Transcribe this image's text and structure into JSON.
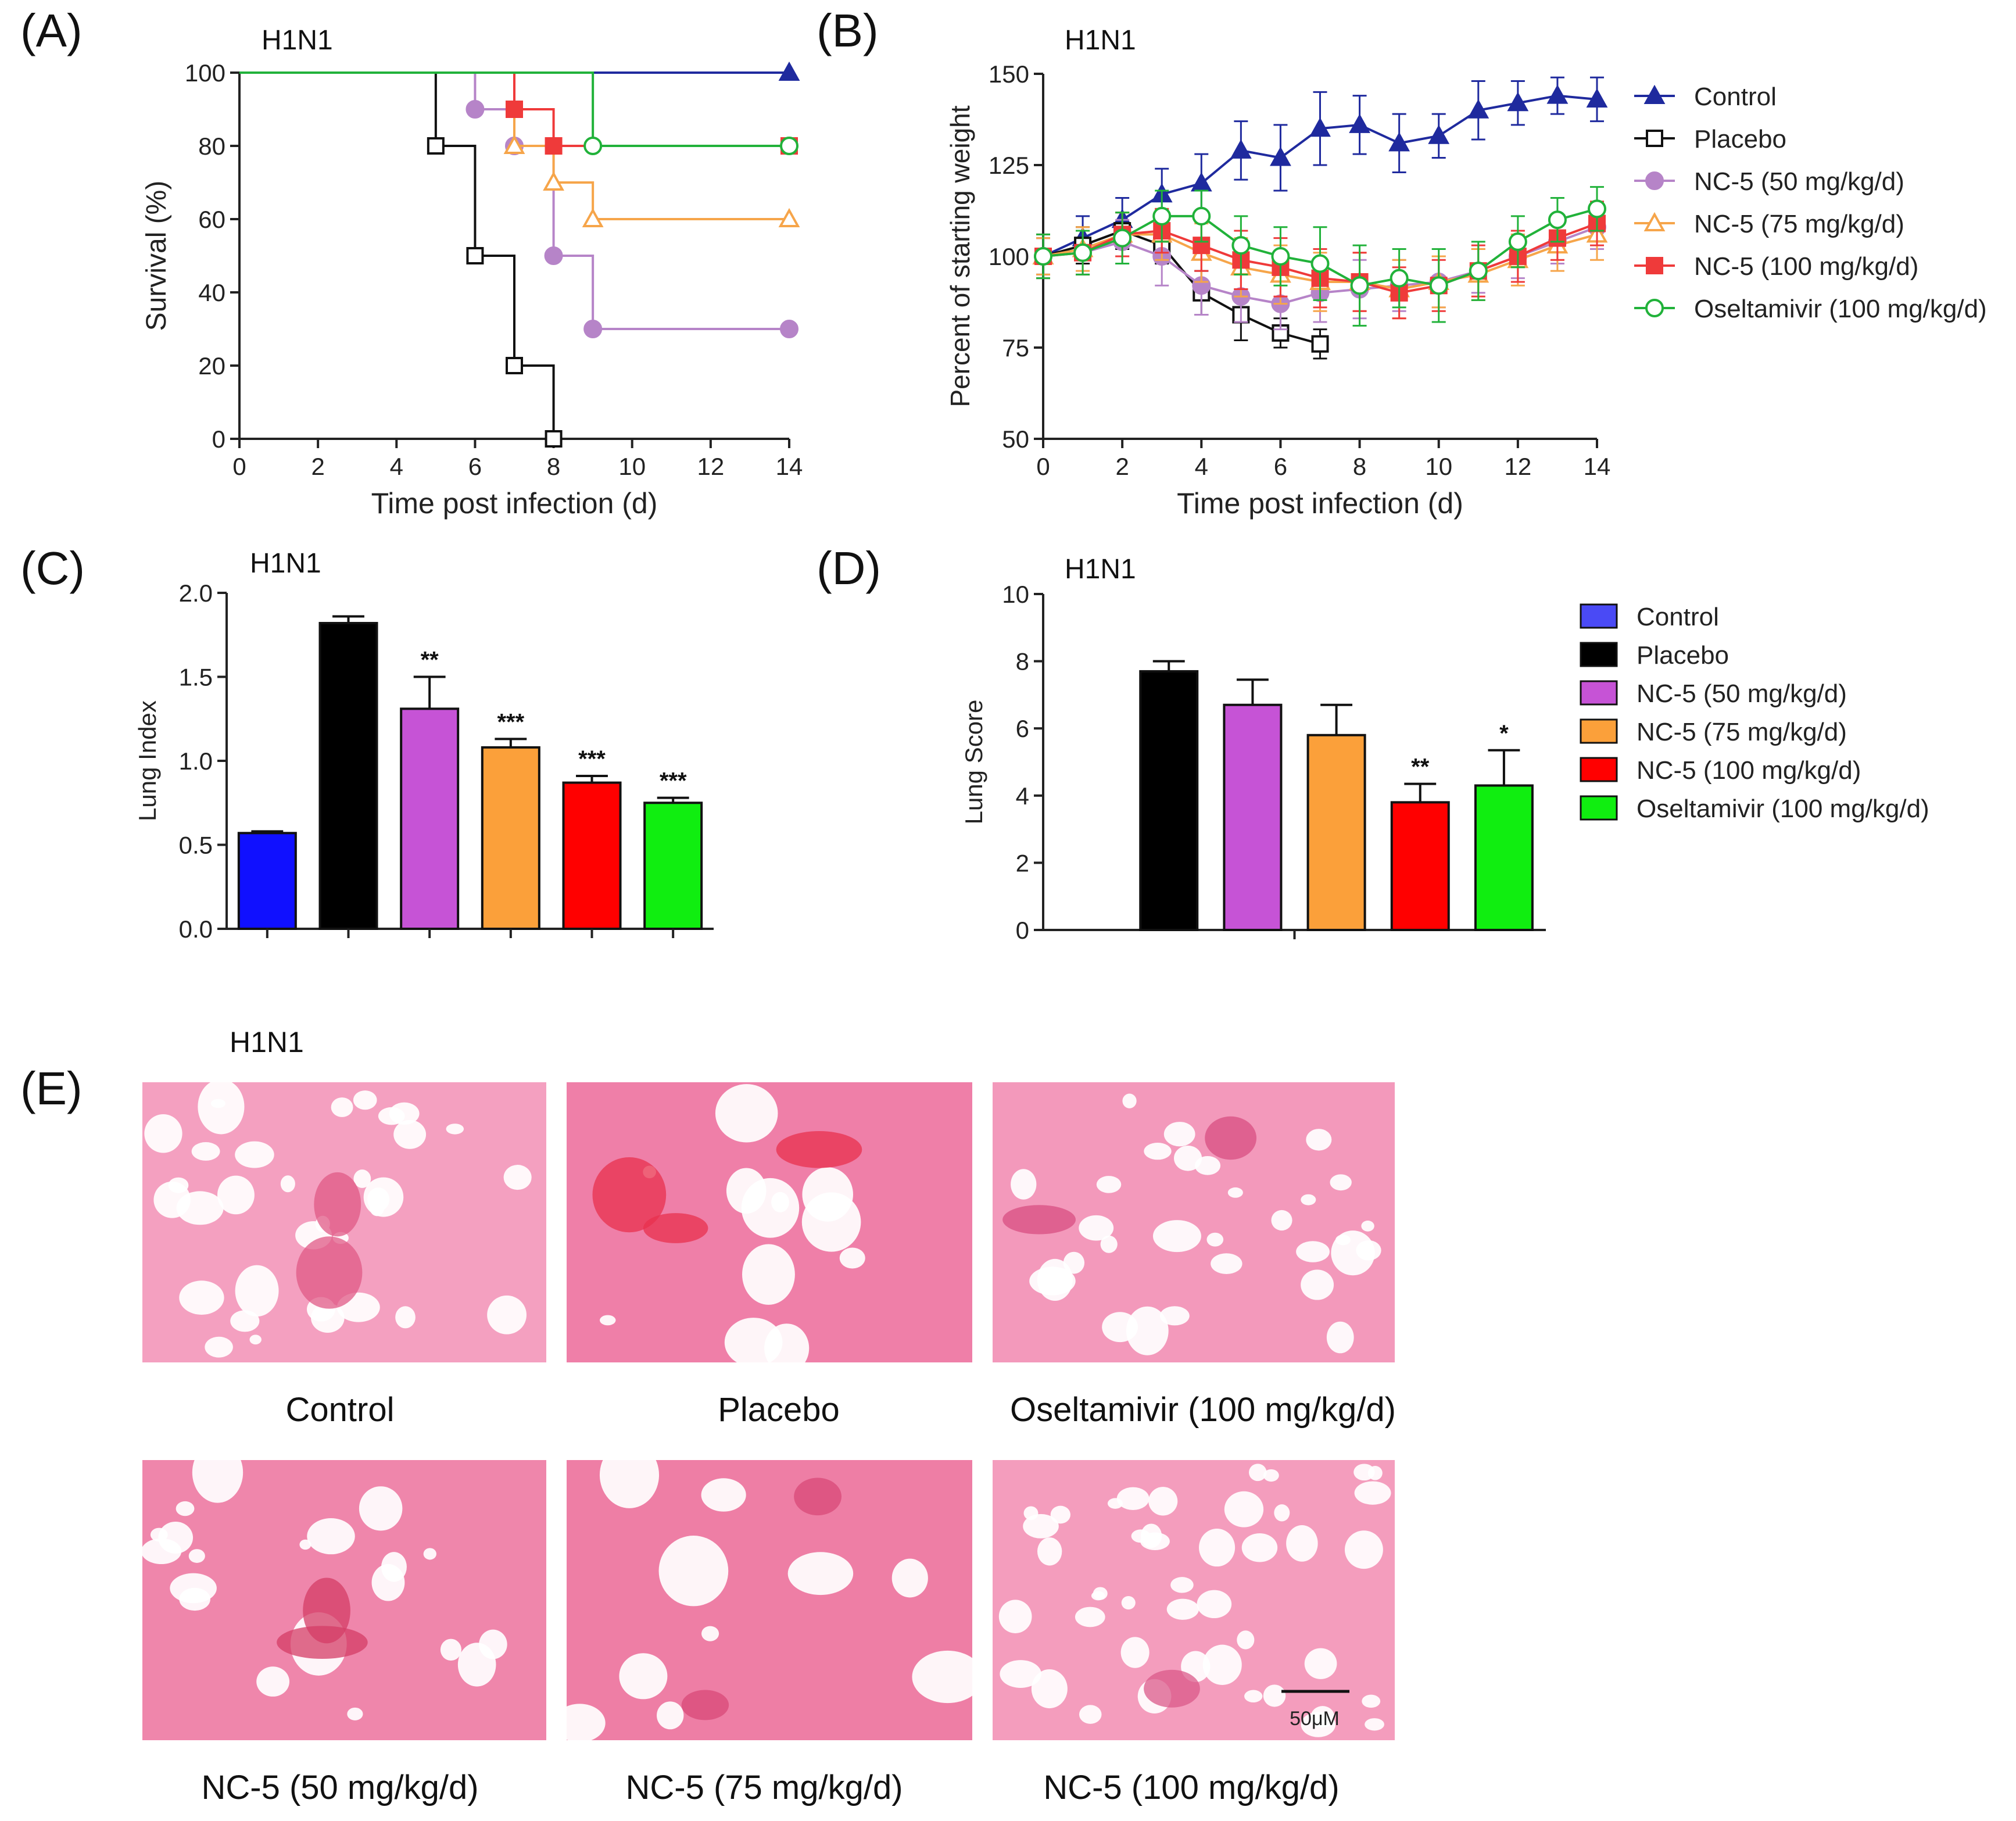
{
  "figure": {
    "caption_e": "(E)",
    "virus_label_e": "H1N1",
    "histology_panels": [
      {
        "label": "Control",
        "tone": "#f4a0c0",
        "void": "#ffffff",
        "lesion": "#e05a86"
      },
      {
        "label": "Placebo",
        "tone": "#ef7fa8",
        "void": "#ffffff",
        "lesion": "#e8304e"
      },
      {
        "label": "Oseltamivir (100 mg/kg/d)",
        "tone": "#f399bb",
        "void": "#ffffff",
        "lesion": "#d84f82"
      },
      {
        "label": "NC-5 (50 mg/kg/d)",
        "tone": "#ef86ab",
        "void": "#ffffff",
        "lesion": "#d43c66"
      },
      {
        "label": "NC-5 (75 mg/kg/d)",
        "tone": "#ee7ea5",
        "void": "#ffffff",
        "lesion": "#d84a78"
      },
      {
        "label": "NC-5 (100 mg/kg/d)",
        "tone": "#f49dbd",
        "void": "#ffffff",
        "lesion": "#db5a8a"
      }
    ],
    "scale_bar_label": "50μM"
  },
  "chart_data": [
    {
      "id": "A",
      "type": "line",
      "panel_label": "(A)",
      "title": "H1N1",
      "xlabel": "Time post infection (d)",
      "ylabel": "Survival (%)",
      "xlim": [
        0,
        14
      ],
      "ylim": [
        0,
        100
      ],
      "xticks": [
        0,
        2,
        4,
        6,
        8,
        10,
        12,
        14
      ],
      "yticks": [
        0,
        20,
        40,
        60,
        80,
        100
      ],
      "step": true,
      "series": [
        {
          "name": "Control",
          "color": "#1f2a9e",
          "marker": "triangle-filled",
          "points": [
            [
              0,
              100
            ],
            [
              14,
              100
            ]
          ],
          "markers": [
            [
              14,
              100
            ]
          ]
        },
        {
          "name": "Placebo",
          "color": "#111111",
          "marker": "square-open",
          "points": [
            [
              0,
              100
            ],
            [
              5,
              80
            ],
            [
              6,
              50
            ],
            [
              7,
              20
            ],
            [
              8,
              0
            ]
          ],
          "markers": [
            [
              5,
              80
            ],
            [
              6,
              50
            ],
            [
              7,
              20
            ],
            [
              8,
              0
            ]
          ]
        },
        {
          "name": "NC-5 (50 mg/kg/d)",
          "color": "#b684c8",
          "marker": "circle-filled",
          "points": [
            [
              0,
              100
            ],
            [
              6,
              90
            ],
            [
              7,
              80
            ],
            [
              8,
              50
            ],
            [
              9,
              30
            ],
            [
              14,
              30
            ]
          ],
          "markers": [
            [
              6,
              90
            ],
            [
              7,
              80
            ],
            [
              8,
              50
            ],
            [
              9,
              30
            ],
            [
              14,
              30
            ]
          ]
        },
        {
          "name": "NC-5 (75 mg/kg/d)",
          "color": "#f6a54a",
          "marker": "triangle-open",
          "points": [
            [
              0,
              100
            ],
            [
              7,
              80
            ],
            [
              8,
              70
            ],
            [
              9,
              60
            ],
            [
              14,
              60
            ]
          ],
          "markers": [
            [
              7,
              80
            ],
            [
              8,
              70
            ],
            [
              9,
              60
            ],
            [
              14,
              60
            ]
          ]
        },
        {
          "name": "NC-5 (100 mg/kg/d)",
          "color": "#ef3a3a",
          "marker": "square-filled",
          "points": [
            [
              0,
              100
            ],
            [
              7,
              90
            ],
            [
              8,
              80
            ],
            [
              14,
              80
            ]
          ],
          "markers": [
            [
              7,
              90
            ],
            [
              8,
              80
            ],
            [
              14,
              80
            ]
          ]
        },
        {
          "name": "Oseltamivir (100 mg/kg/d)",
          "color": "#21b23a",
          "marker": "circle-open",
          "points": [
            [
              0,
              100
            ],
            [
              9,
              80
            ],
            [
              14,
              80
            ]
          ],
          "markers": [
            [
              9,
              80
            ],
            [
              14,
              80
            ]
          ]
        }
      ]
    },
    {
      "id": "B",
      "type": "line",
      "panel_label": "(B)",
      "title": "H1N1",
      "xlabel": "Time post infection (d)",
      "ylabel": "Percent of starting weight",
      "xlim": [
        0,
        14
      ],
      "ylim": [
        50,
        150
      ],
      "xticks": [
        0,
        2,
        4,
        6,
        8,
        10,
        12,
        14
      ],
      "yticks": [
        50,
        75,
        100,
        125,
        150
      ],
      "legend_position": "right",
      "series": [
        {
          "name": "Control",
          "color": "#1f2a9e",
          "marker": "triangle-filled",
          "x": [
            0,
            1,
            2,
            3,
            4,
            5,
            6,
            7,
            8,
            9,
            10,
            11,
            12,
            13,
            14
          ],
          "y": [
            100,
            105,
            110,
            117,
            120,
            129,
            127,
            135,
            136,
            131,
            133,
            140,
            142,
            144,
            143
          ],
          "err": [
            6,
            6,
            6,
            7,
            8,
            8,
            9,
            10,
            8,
            8,
            6,
            8,
            6,
            5,
            6
          ]
        },
        {
          "name": "Placebo",
          "color": "#111111",
          "marker": "square-open",
          "x": [
            0,
            1,
            2,
            3,
            4,
            5,
            6,
            7
          ],
          "y": [
            100,
            103,
            107,
            103,
            90,
            84,
            79,
            76
          ],
          "err": [
            5,
            5,
            5,
            5,
            6,
            7,
            4,
            4
          ]
        },
        {
          "name": "NC-5 (50 mg/kg/d)",
          "color": "#b684c8",
          "marker": "circle-filled",
          "x": [
            0,
            1,
            2,
            3,
            4,
            5,
            6,
            7,
            8,
            9,
            10,
            11,
            12,
            13,
            14
          ],
          "y": [
            100,
            101,
            104,
            100,
            92,
            89,
            87,
            90,
            91,
            92,
            93,
            96,
            100,
            104,
            108
          ],
          "err": [
            5,
            6,
            6,
            8,
            8,
            7,
            7,
            8,
            8,
            7,
            7,
            6,
            6,
            6,
            6
          ]
        },
        {
          "name": "NC-5 (75 mg/kg/d)",
          "color": "#f6a54a",
          "marker": "triangle-open",
          "x": [
            0,
            1,
            2,
            3,
            4,
            5,
            6,
            7,
            8,
            9,
            10,
            11,
            12,
            13,
            14
          ],
          "y": [
            100,
            102,
            106,
            106,
            101,
            97,
            95,
            93,
            93,
            91,
            93,
            95,
            99,
            103,
            106
          ],
          "err": [
            5,
            6,
            6,
            7,
            8,
            8,
            8,
            8,
            8,
            8,
            7,
            7,
            7,
            7,
            7
          ]
        },
        {
          "name": "NC-5 (100 mg/kg/d)",
          "color": "#ef3a3a",
          "marker": "square-filled",
          "x": [
            0,
            1,
            2,
            3,
            4,
            5,
            6,
            7,
            8,
            9,
            10,
            11,
            12,
            13,
            14
          ],
          "y": [
            100,
            101,
            106,
            107,
            103,
            99,
            97,
            94,
            93,
            90,
            92,
            96,
            100,
            105,
            109
          ],
          "err": [
            6,
            6,
            6,
            6,
            7,
            8,
            8,
            8,
            8,
            7,
            7,
            7,
            7,
            6,
            6
          ]
        },
        {
          "name": "Oseltamivir (100 mg/kg/d)",
          "color": "#21b23a",
          "marker": "circle-open",
          "x": [
            0,
            1,
            2,
            3,
            4,
            5,
            6,
            7,
            8,
            9,
            10,
            11,
            12,
            13,
            14
          ],
          "y": [
            100,
            101,
            105,
            111,
            111,
            103,
            100,
            98,
            92,
            94,
            92,
            96,
            104,
            110,
            113
          ],
          "err": [
            6,
            6,
            7,
            7,
            7,
            8,
            8,
            10,
            11,
            8,
            10,
            8,
            7,
            6,
            6
          ]
        }
      ]
    },
    {
      "id": "C",
      "type": "bar",
      "panel_label": "(C)",
      "title": "H1N1",
      "xlabel": "",
      "ylabel": "Lung Index",
      "ylim": [
        0,
        2.0
      ],
      "yticks": [
        0.0,
        0.5,
        1.0,
        1.5,
        2.0
      ],
      "ytick_labels": [
        "0.0",
        "0.5",
        "1.0",
        "1.5",
        "2.0"
      ],
      "categories": [
        "Control",
        "Placebo",
        "NC-5 (50 mg/kg/d)",
        "NC-5 (75 mg/kg/d)",
        "NC-5 (100 mg/kg/d)",
        "Oseltamivir (100 mg/kg/d)"
      ],
      "values": [
        0.57,
        1.82,
        1.31,
        1.08,
        0.87,
        0.75
      ],
      "errors": [
        0.01,
        0.04,
        0.19,
        0.05,
        0.04,
        0.03
      ],
      "significance": [
        "",
        "",
        "**",
        "***",
        "***",
        "***"
      ],
      "colors": [
        "#1010ff",
        "#000000",
        "#c653d6",
        "#fba03a",
        "#ff0000",
        "#10ee10"
      ]
    },
    {
      "id": "D",
      "type": "bar",
      "panel_label": "(D)",
      "title": "H1N1",
      "xlabel": "",
      "ylabel": "Lung Score",
      "ylim": [
        0,
        10
      ],
      "yticks": [
        0,
        2,
        4,
        6,
        8,
        10
      ],
      "ytick_labels": [
        "0",
        "2",
        "4",
        "6",
        "8",
        "10"
      ],
      "legend_position": "right",
      "categories": [
        "Control",
        "Placebo",
        "NC-5 (50 mg/kg/d)",
        "NC-5 (75 mg/kg/d)",
        "NC-5 (100 mg/kg/d)",
        "Oseltamivir (100 mg/kg/d)"
      ],
      "values": [
        0,
        7.7,
        6.7,
        5.8,
        3.8,
        4.3
      ],
      "errors": [
        0,
        0.3,
        0.75,
        0.9,
        0.55,
        1.05
      ],
      "significance": [
        "",
        "",
        "",
        "",
        "**",
        "*"
      ],
      "colors": [
        "#4a4af5",
        "#000000",
        "#c653d6",
        "#fba03a",
        "#ff0000",
        "#10ee10"
      ]
    }
  ]
}
